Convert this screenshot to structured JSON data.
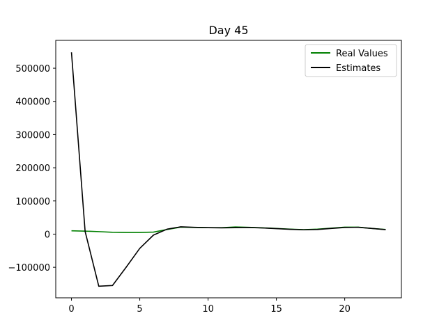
{
  "chart_data": {
    "type": "line",
    "title": "Day 45",
    "xlabel": "",
    "ylabel": "",
    "xlim": [
      -1.15,
      24.15
    ],
    "ylim": [
      -192000,
      584000
    ],
    "x_ticks": [
      0,
      5,
      10,
      15,
      20
    ],
    "y_ticks": [
      -100000,
      0,
      100000,
      200000,
      300000,
      400000,
      500000
    ],
    "y_tick_labels": [
      "−100000",
      "0",
      "100000",
      "200000",
      "300000",
      "400000",
      "500000"
    ],
    "grid": false,
    "legend_position": "top-right",
    "x": [
      0,
      1,
      2,
      3,
      4,
      5,
      6,
      7,
      8,
      9,
      10,
      11,
      12,
      13,
      14,
      15,
      16,
      17,
      18,
      19,
      20,
      21,
      22,
      23
    ],
    "series": [
      {
        "name": "Real Values",
        "color": "#008000",
        "values": [
          10000,
          9000,
          7500,
          5500,
          5000,
          5000,
          6000,
          14000,
          21000,
          20000,
          19500,
          19500,
          21500,
          20500,
          19000,
          17000,
          15000,
          13500,
          15000,
          18000,
          21000,
          21000,
          17000,
          14000
        ]
      },
      {
        "name": "Estimates",
        "color": "#000000",
        "values": [
          548000,
          8000,
          -157000,
          -155000,
          -100000,
          -43000,
          -3000,
          15000,
          22000,
          20500,
          19500,
          19000,
          19500,
          20000,
          18500,
          16500,
          14500,
          13000,
          14000,
          17000,
          20000,
          20500,
          17000,
          13500
        ]
      }
    ]
  }
}
